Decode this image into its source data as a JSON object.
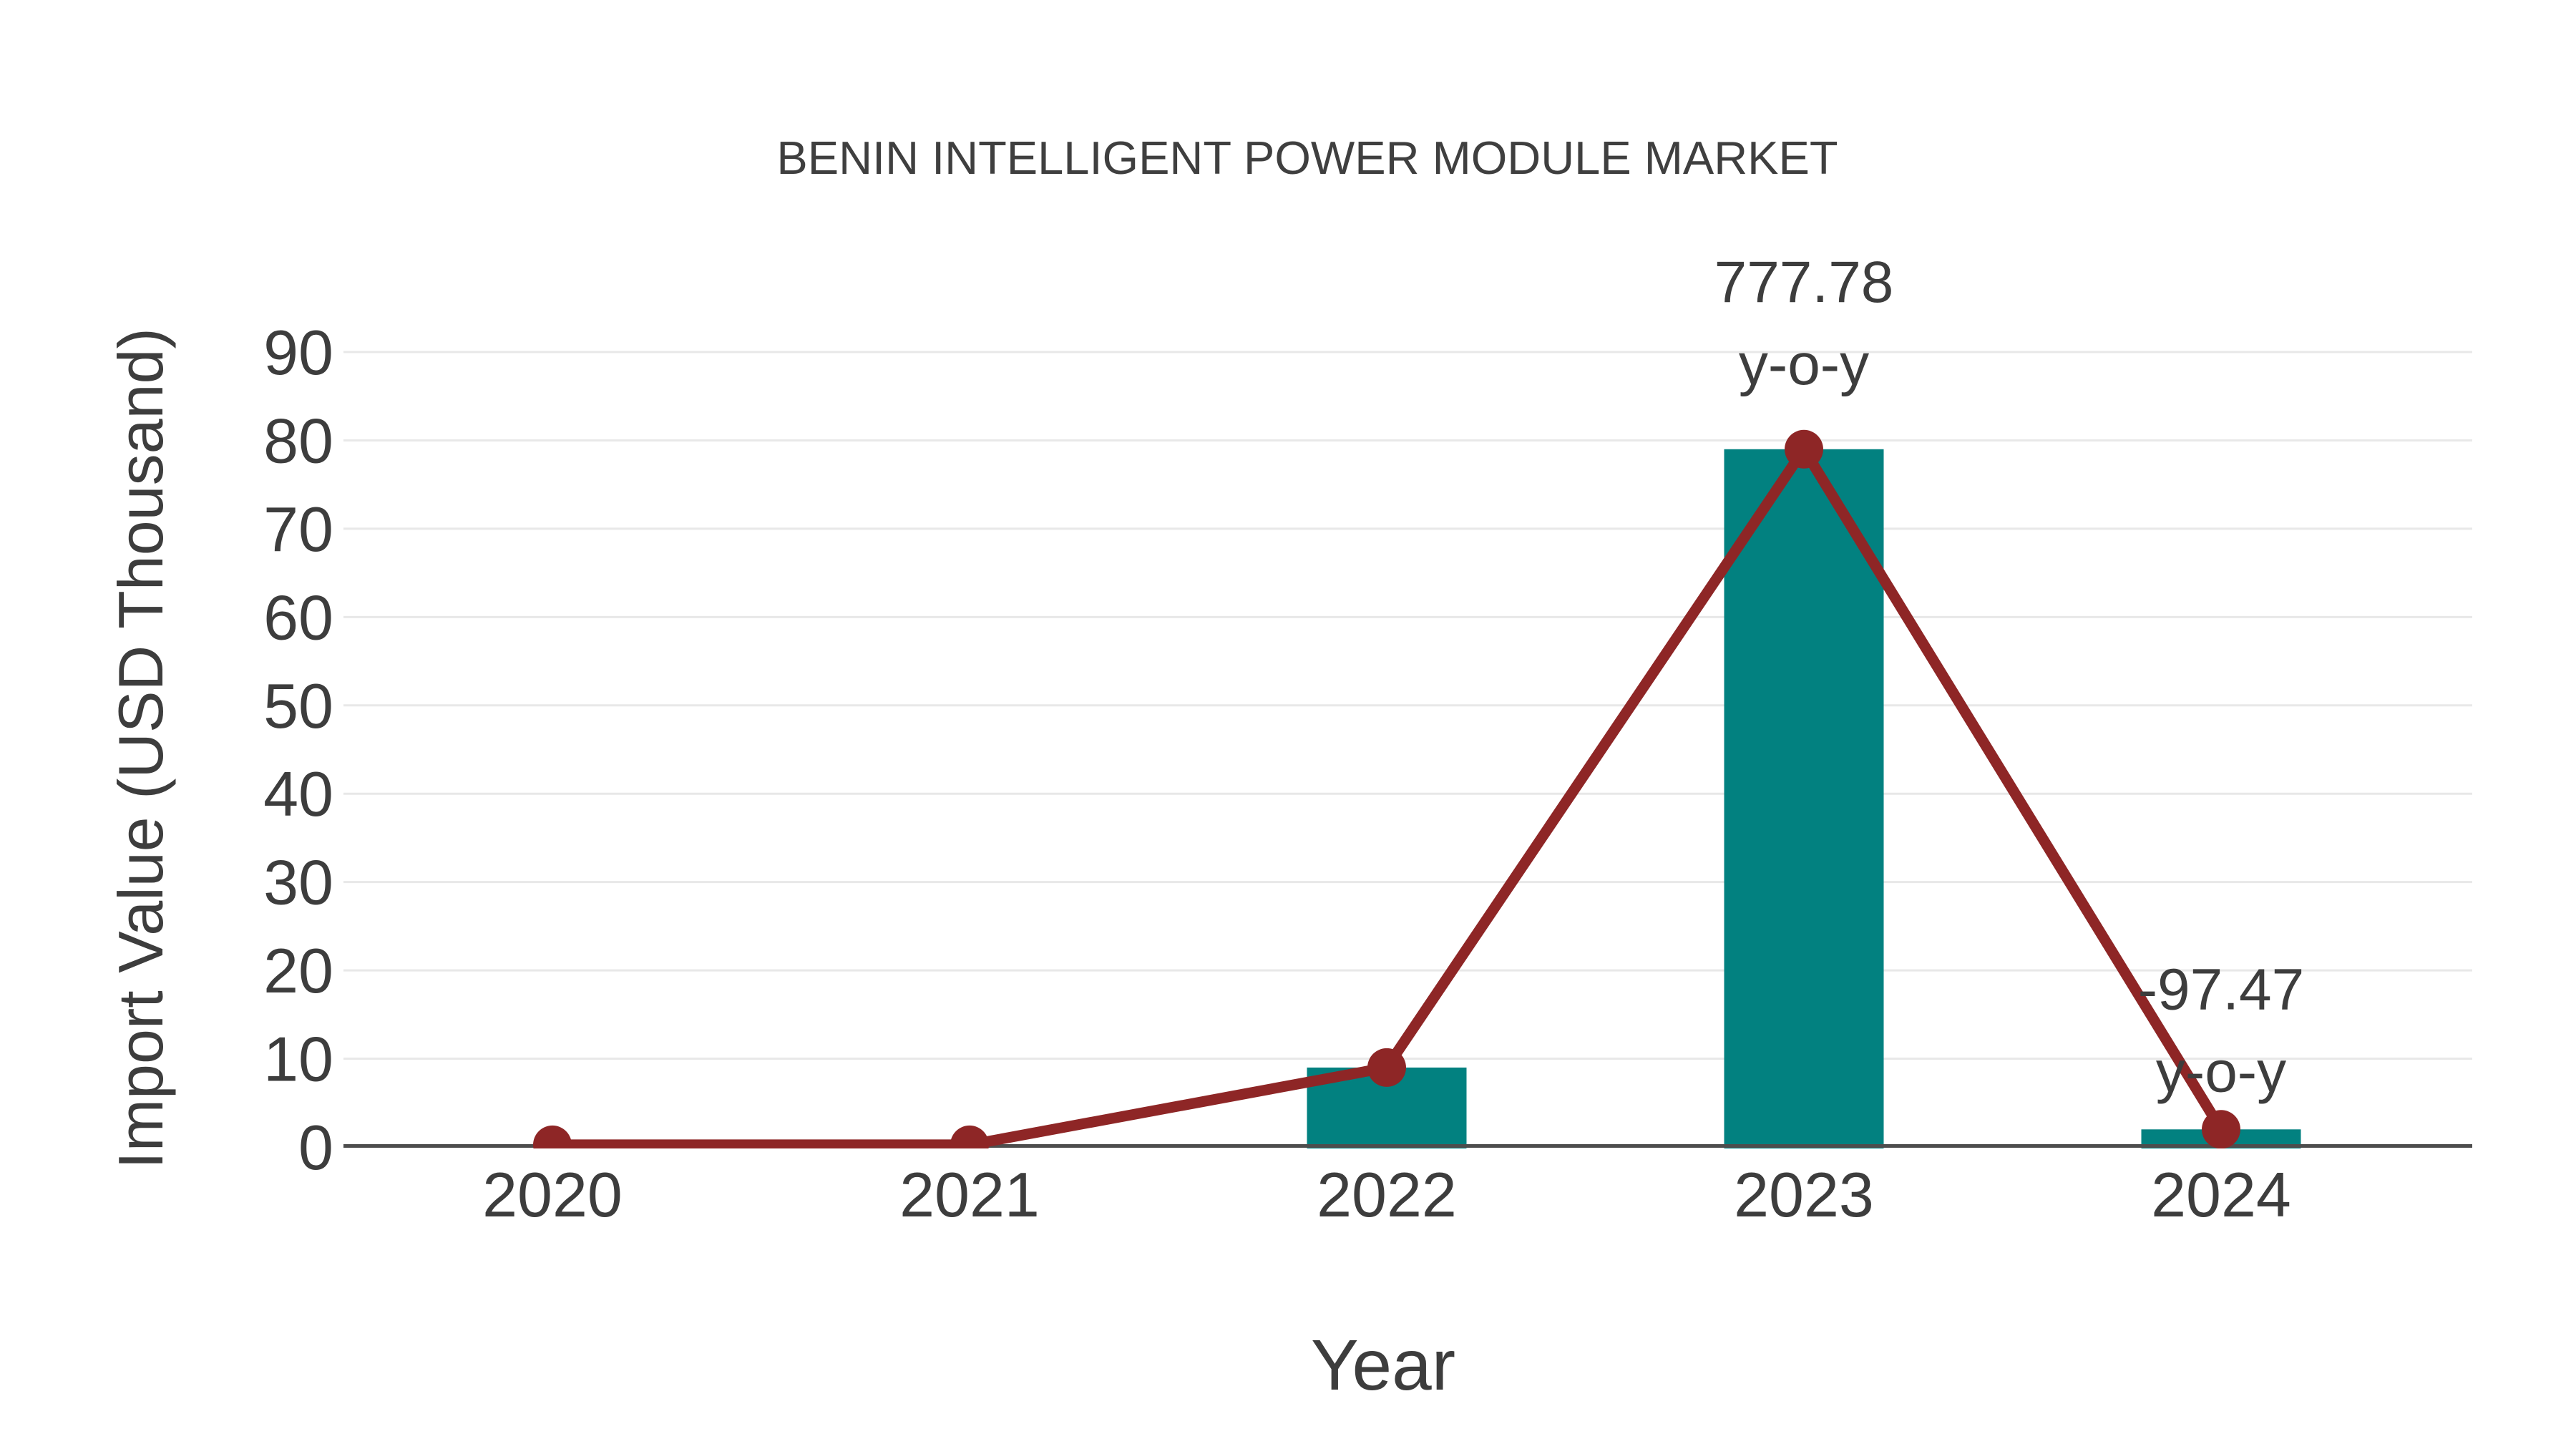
{
  "chart_data": {
    "type": "bar",
    "title": "BENIN INTELLIGENT POWER MODULE MARKET",
    "xlabel": "Year",
    "ylabel": "Import Value (USD Thousand)",
    "categories": [
      "2020",
      "2021",
      "2022",
      "2023",
      "2024"
    ],
    "series": [
      {
        "name": "import-value-bars",
        "kind": "bar",
        "values": [
          0,
          0,
          9,
          79,
          2
        ]
      },
      {
        "name": "import-value-trend",
        "kind": "line",
        "values": [
          0,
          0,
          9,
          79,
          2
        ]
      }
    ],
    "annotations": [
      {
        "category": "2023",
        "lines": [
          "777.78",
          "y-o-y"
        ]
      },
      {
        "category": "2024",
        "lines": [
          "-97.47",
          "y-o-y"
        ]
      }
    ],
    "ylim": [
      0,
      90
    ],
    "yticks": [
      0,
      10,
      20,
      30,
      40,
      50,
      60,
      70,
      80,
      90
    ],
    "grid": "horizontal",
    "legend": "none",
    "colors": {
      "bar": "#028180",
      "line": "#8e2626",
      "marker": "#8e2626",
      "grid": "#e8e8e8",
      "axis": "#4d4d4d",
      "text": "#3d3d3d",
      "title": "#3f3f3f",
      "background": "#ffffff"
    }
  }
}
